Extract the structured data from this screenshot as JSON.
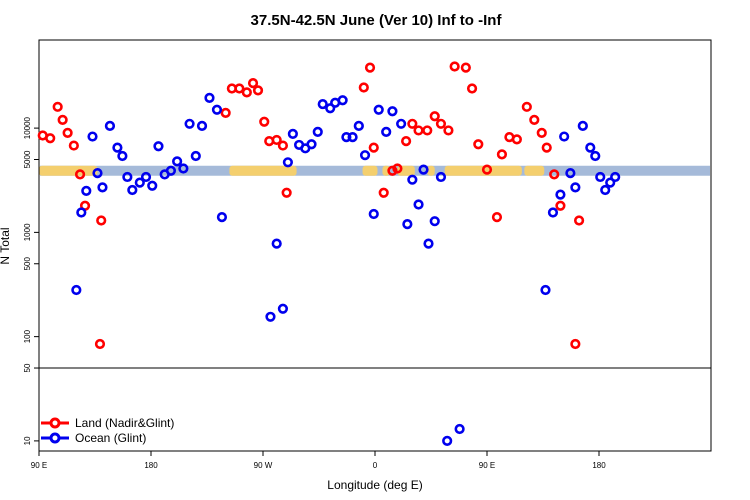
{
  "chart_data": {
    "type": "scatter",
    "title": "37.5N-42.5N June (Ver 10)   Inf to -Inf",
    "xlabel": "Longitude (deg E)",
    "ylabel": "N Total",
    "x_scale": "linear",
    "y_scale": "log",
    "xlim": [
      90,
      630
    ],
    "ylim": [
      8,
      70000
    ],
    "x_ticks": [
      {
        "value": 90,
        "label": "90 E"
      },
      {
        "value": 180,
        "label": "180"
      },
      {
        "value": 270,
        "label": "90 W"
      },
      {
        "value": 360,
        "label": "0"
      },
      {
        "value": 450,
        "label": "90 E"
      },
      {
        "value": 540,
        "label": "180"
      }
    ],
    "y_ticks": [
      {
        "value": 10,
        "label": "10"
      },
      {
        "value": 50,
        "label": "50"
      },
      {
        "value": 100,
        "label": "100"
      },
      {
        "value": 500,
        "label": "500"
      },
      {
        "value": 1000,
        "label": "1000"
      },
      {
        "value": 5000,
        "label": "5000"
      },
      {
        "value": 10000,
        "label": "10000"
      }
    ],
    "hline": 50,
    "land_strip": {
      "y": 3900,
      "ocean_color": "#a5bad9",
      "land_color": "#f4cf6e",
      "land_segments": [
        [
          90,
          137
        ],
        [
          243,
          297
        ],
        [
          350,
          362
        ],
        [
          366,
          372
        ],
        [
          378,
          392
        ],
        [
          402,
          408
        ],
        [
          416,
          478
        ],
        [
          480,
          496
        ]
      ]
    },
    "legend": {
      "position": "bottom-left",
      "entries": [
        {
          "label": "Land (Nadir&Glint)",
          "color": "#ff0000"
        },
        {
          "label": "Ocean (Glint)",
          "color": "#0000ee"
        }
      ]
    },
    "series": [
      {
        "name": "Land (Nadir&Glint)",
        "color": "#ff0000",
        "points": [
          [
            93,
            8500
          ],
          [
            99,
            8000
          ],
          [
            105,
            16000
          ],
          [
            109,
            12000
          ],
          [
            113,
            9000
          ],
          [
            118,
            6800
          ],
          [
            123,
            3600
          ],
          [
            127,
            1800
          ],
          [
            139,
            85
          ],
          [
            140,
            1300
          ],
          [
            240,
            14000
          ],
          [
            245,
            24000
          ],
          [
            251,
            24000
          ],
          [
            257,
            22000
          ],
          [
            262,
            27000
          ],
          [
            266,
            23000
          ],
          [
            271,
            11500
          ],
          [
            275,
            7500
          ],
          [
            281,
            7700
          ],
          [
            286,
            6800
          ],
          [
            289,
            2400
          ],
          [
            351,
            24500
          ],
          [
            356,
            38000
          ],
          [
            359,
            6500
          ],
          [
            367,
            2400
          ],
          [
            374,
            3900
          ],
          [
            378,
            4100
          ],
          [
            385,
            7500
          ],
          [
            390,
            11000
          ],
          [
            395,
            9500
          ],
          [
            402,
            9500
          ],
          [
            408,
            13000
          ],
          [
            413,
            11000
          ],
          [
            419,
            9500
          ],
          [
            424,
            39000
          ],
          [
            433,
            38000
          ],
          [
            438,
            24000
          ],
          [
            443,
            7000
          ],
          [
            450,
            4000
          ],
          [
            458,
            1400
          ],
          [
            462,
            5600
          ],
          [
            468,
            8200
          ],
          [
            474,
            7800
          ],
          [
            482,
            16000
          ],
          [
            488,
            12000
          ],
          [
            494,
            9000
          ],
          [
            498,
            6500
          ],
          [
            504,
            3600
          ],
          [
            509,
            1800
          ],
          [
            521,
            85
          ],
          [
            524,
            1300
          ]
        ]
      },
      {
        "name": "Ocean (Glint)",
        "color": "#0000ee",
        "points": [
          [
            120,
            280
          ],
          [
            124,
            1550
          ],
          [
            128,
            2500
          ],
          [
            133,
            8300
          ],
          [
            137,
            3700
          ],
          [
            141,
            2700
          ],
          [
            147,
            10500
          ],
          [
            153,
            6500
          ],
          [
            157,
            5400
          ],
          [
            161,
            3400
          ],
          [
            165,
            2550
          ],
          [
            171,
            3000
          ],
          [
            176,
            3400
          ],
          [
            181,
            2800
          ],
          [
            186,
            6700
          ],
          [
            191,
            3600
          ],
          [
            196,
            3900
          ],
          [
            201,
            4800
          ],
          [
            206,
            4100
          ],
          [
            211,
            11000
          ],
          [
            216,
            5400
          ],
          [
            221,
            10500
          ],
          [
            227,
            19500
          ],
          [
            233,
            15000
          ],
          [
            237,
            1400
          ],
          [
            276,
            155
          ],
          [
            281,
            780
          ],
          [
            286,
            185
          ],
          [
            290,
            4700
          ],
          [
            294,
            8800
          ],
          [
            299,
            6900
          ],
          [
            304,
            6400
          ],
          [
            309,
            7000
          ],
          [
            314,
            9200
          ],
          [
            318,
            17000
          ],
          [
            324,
            15500
          ],
          [
            328,
            17500
          ],
          [
            334,
            18500
          ],
          [
            337,
            8200
          ],
          [
            342,
            8200
          ],
          [
            347,
            10500
          ],
          [
            352,
            5500
          ],
          [
            359,
            1500
          ],
          [
            363,
            15000
          ],
          [
            369,
            9200
          ],
          [
            374,
            14500
          ],
          [
            381,
            11000
          ],
          [
            386,
            1200
          ],
          [
            390,
            3200
          ],
          [
            395,
            1850
          ],
          [
            399,
            4000
          ],
          [
            403,
            780
          ],
          [
            408,
            1280
          ],
          [
            413,
            3400
          ],
          [
            418,
            10
          ],
          [
            428,
            13
          ]
        ]
      },
      {
        "name": "Ocean (Glint)",
        "color": "#0000ee",
        "points": [
          [
            497,
            280
          ],
          [
            503,
            1550
          ],
          [
            509,
            2300
          ],
          [
            512,
            8300
          ],
          [
            517,
            3700
          ],
          [
            521,
            2700
          ],
          [
            527,
            10500
          ],
          [
            533,
            6500
          ],
          [
            537,
            5400
          ],
          [
            541,
            3400
          ],
          [
            545,
            2550
          ],
          [
            549,
            3000
          ],
          [
            553,
            3400
          ]
        ]
      }
    ]
  }
}
